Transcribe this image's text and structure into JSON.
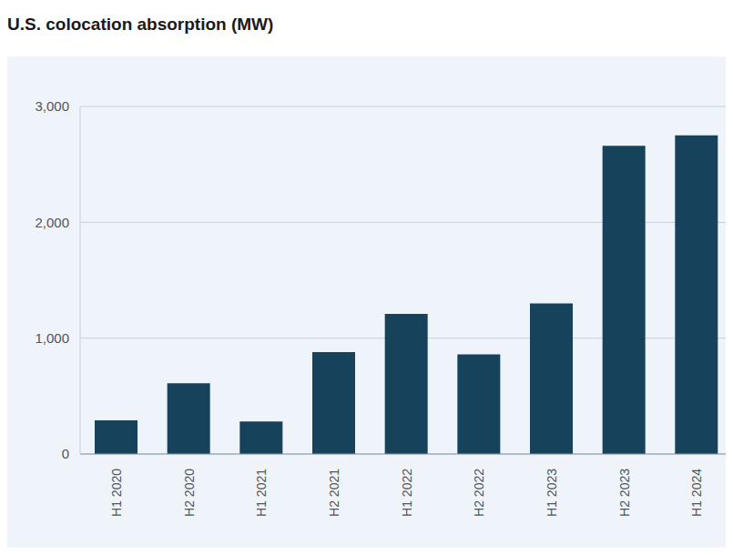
{
  "chart_data": {
    "type": "bar",
    "title": "U.S. colocation absorption (MW)",
    "categories": [
      "H1 2020",
      "H2 2020",
      "H1 2021",
      "H2 2021",
      "H1 2022",
      "H2 2022",
      "H1 2023",
      "H2 2023",
      "H1 2024"
    ],
    "values": [
      290,
      610,
      280,
      880,
      1210,
      860,
      1300,
      2660,
      2750
    ],
    "color": "#16425b",
    "ylim": [
      0,
      3000
    ],
    "yticks": [
      0,
      {
        "value": 1000,
        "label": "1,000"
      },
      {
        "value": 2000,
        "label": "2,000"
      },
      {
        "value": 3000,
        "label": "3,000"
      }
    ],
    "grid": true
  }
}
